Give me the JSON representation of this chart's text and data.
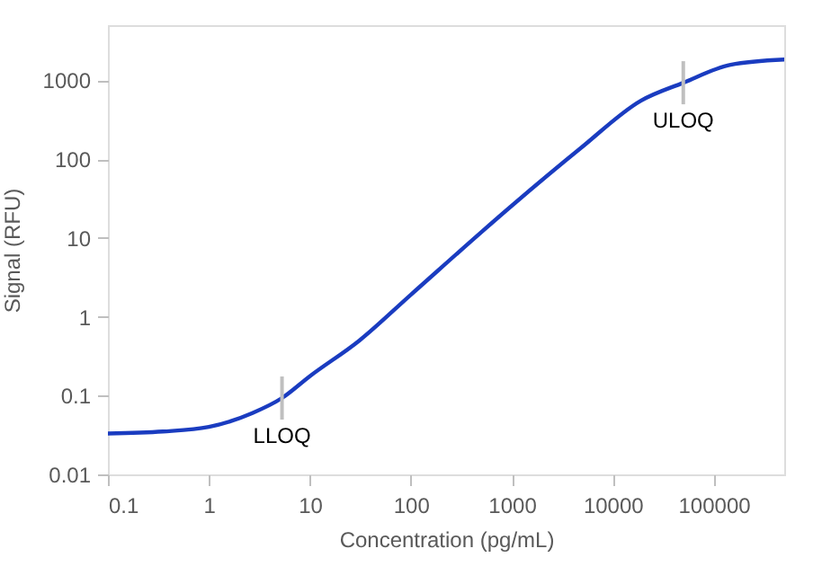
{
  "chart_data": {
    "type": "line",
    "xlabel": "Concentration (pg/mL)",
    "ylabel": "Signal (RFU)",
    "log": "xy",
    "grid": false,
    "marker": "none",
    "line_style": "solid",
    "xlim": [
      0.1,
      500000
    ],
    "xticks": [
      0.1,
      1,
      10,
      100,
      1000,
      10000,
      100000
    ],
    "ylim": [
      0.01,
      5000
    ],
    "yticks": [
      0.01,
      0.1,
      1,
      10,
      100,
      1000
    ],
    "x": [
      0.1,
      0.35,
      1,
      2.7,
      5.3,
      10,
      31,
      100,
      1000,
      4800,
      19000,
      50000,
      147000,
      500000
    ],
    "series": [
      {
        "color": "#1a3cc0",
        "values": [
          0.033,
          0.035,
          0.04,
          0.06,
          0.093,
          0.176,
          0.5,
          1.9,
          25.6,
          137,
          550,
          930,
          1570,
          1830
        ]
      }
    ],
    "annotations": [
      {
        "text": "LLOQ",
        "x": 5.3,
        "y": 0.093
      },
      {
        "text": "ULOQ",
        "x": 50000,
        "y": 930
      }
    ]
  }
}
